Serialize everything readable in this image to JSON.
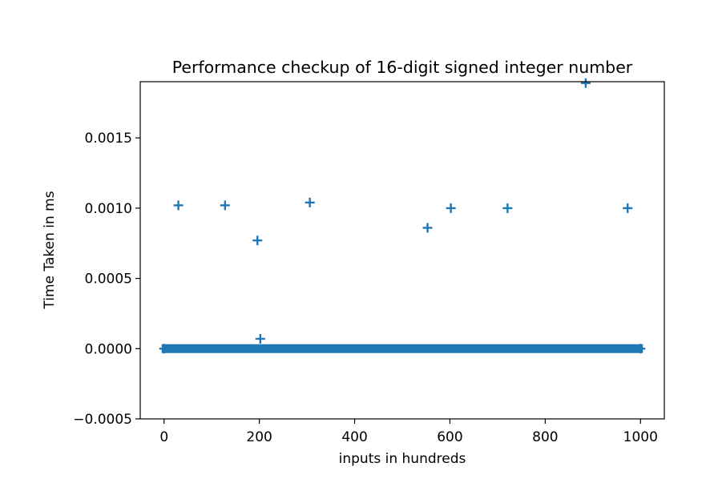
{
  "chart_data": {
    "type": "scatter",
    "title": "Performance checkup of 16-digit signed integer number",
    "xlabel": "inputs in hundreds",
    "ylabel": "Time Taken in ms",
    "xlim": [
      -50,
      1050
    ],
    "ylim": [
      -0.0005,
      0.0019
    ],
    "xticks": [
      0,
      200,
      400,
      600,
      800,
      1000
    ],
    "xtick_labels": [
      "0",
      "200",
      "400",
      "600",
      "800",
      "1000"
    ],
    "yticks": [
      -0.0005,
      0.0,
      0.0005,
      0.001,
      0.0015
    ],
    "ytick_labels": [
      "−0.0005",
      "0.0000",
      "0.0005",
      "0.0010",
      "0.0015"
    ],
    "grid": false,
    "marker": "+",
    "color": "#1f77b4",
    "baseline": {
      "y": 0.0,
      "x_from": 0,
      "x_to": 1000
    },
    "series": [
      {
        "x": [
          30,
          128,
          196,
          202,
          306,
          553,
          602,
          721,
          885,
          973
        ],
        "y": [
          0.00102,
          0.00102,
          0.00077,
          7e-05,
          0.00104,
          0.00086,
          0.001,
          0.001,
          0.00189,
          0.001
        ]
      }
    ]
  }
}
